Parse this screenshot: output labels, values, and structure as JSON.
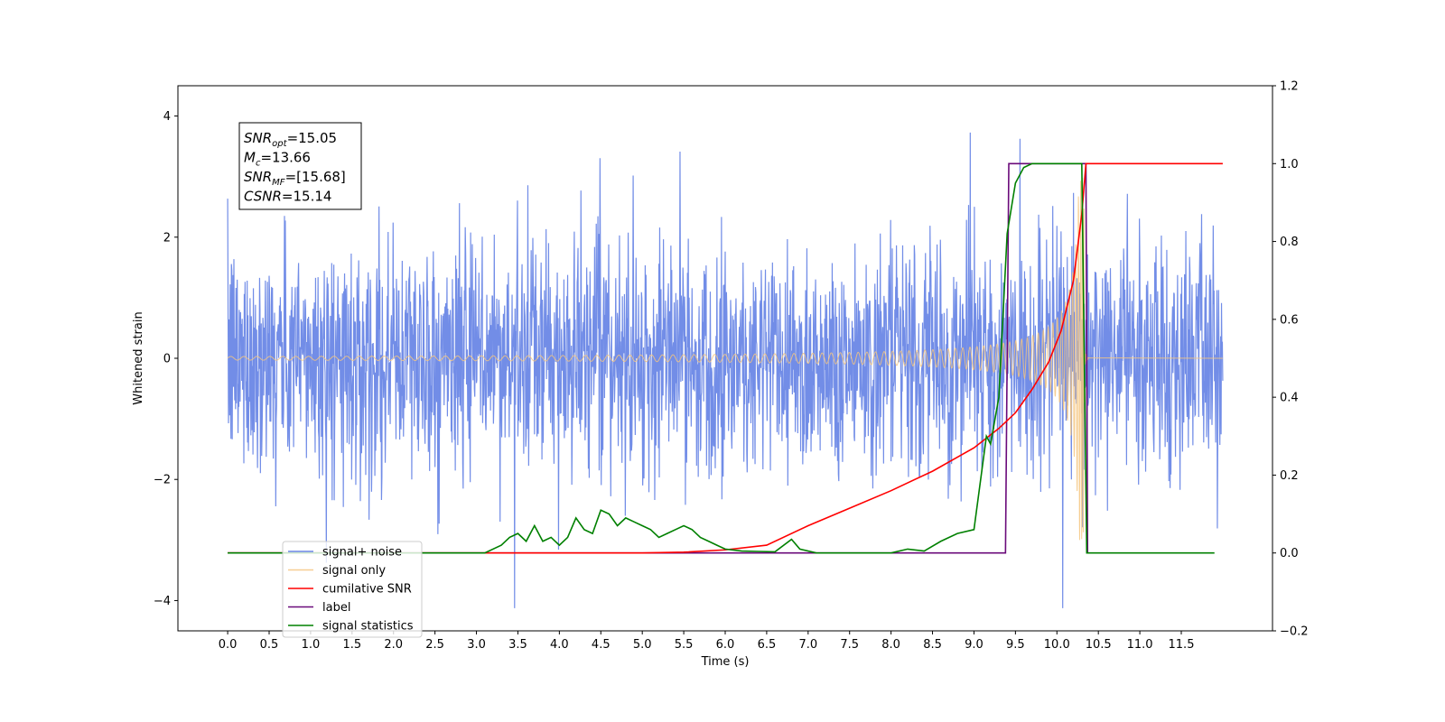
{
  "chart_data": {
    "type": "line",
    "xlabel": "Time (s)",
    "ylabel": "Whitened strain",
    "xlim": [
      -0.6,
      12.6
    ],
    "ylim": [
      -4.5,
      4.5
    ],
    "y2lim": [
      -0.2,
      1.2
    ],
    "x_ticks": [
      "0.0",
      "0.5",
      "1.0",
      "1.5",
      "2.0",
      "2.5",
      "3.0",
      "3.5",
      "4.0",
      "4.5",
      "5.0",
      "5.5",
      "6.0",
      "6.5",
      "7.0",
      "7.5",
      "8.0",
      "8.5",
      "9.0",
      "9.5",
      "10.0",
      "10.5",
      "11.0",
      "11.5"
    ],
    "y_ticks": [
      "4",
      "2",
      "0",
      "−2",
      "−4"
    ],
    "y2_ticks": [
      "1.2",
      "1.0",
      "0.8",
      "0.6",
      "0.4",
      "0.2",
      "0.0",
      "−0.2"
    ],
    "grid": false,
    "legend_position": "lower-left",
    "info_box": [
      {
        "base": "SNR",
        "sub": "opt",
        "value": "=15.05"
      },
      {
        "base": "M",
        "sub": "c",
        "value": "=13.66"
      },
      {
        "base": "SNR",
        "sub": "MF",
        "value": "=[15.68]"
      },
      {
        "base": "CSNR",
        "sub": "",
        "value": "=15.14"
      }
    ],
    "series": [
      {
        "name": "signal+ noise",
        "color": "#6a87e6",
        "axis": "left",
        "style": "noise",
        "x_range": [
          0.0,
          12.0
        ],
        "amplitude_envelope": 3.3
      },
      {
        "name": "signal only",
        "color": "#f5c67f",
        "axis": "left",
        "style": "chirp",
        "x_range": [
          0.0,
          10.38
        ],
        "merger_time": 10.33
      },
      {
        "name": "cumilative SNR",
        "color": "#ff0000",
        "axis": "right",
        "x": [
          0.0,
          5.0,
          5.5,
          6.0,
          6.5,
          7.0,
          7.5,
          8.0,
          8.5,
          9.0,
          9.3,
          9.5,
          9.7,
          9.9,
          10.05,
          10.2,
          10.3,
          10.35,
          12.0
        ],
        "values": [
          0.0,
          0.0,
          0.002,
          0.008,
          0.02,
          0.07,
          0.115,
          0.16,
          0.21,
          0.27,
          0.32,
          0.36,
          0.42,
          0.49,
          0.57,
          0.7,
          0.87,
          1.0,
          1.0
        ]
      },
      {
        "name": "label",
        "color": "#6a0a7a",
        "axis": "right",
        "x": [
          0.0,
          9.38,
          9.42,
          10.32,
          10.35,
          10.37
        ],
        "values": [
          0.0,
          0.0,
          1.0,
          1.0,
          1.0,
          0.0
        ]
      },
      {
        "name": "signal statistics",
        "color": "#008000",
        "axis": "right",
        "x": [
          0.0,
          3.1,
          3.3,
          3.4,
          3.5,
          3.6,
          3.7,
          3.75,
          3.8,
          3.9,
          4.0,
          4.1,
          4.2,
          4.3,
          4.4,
          4.5,
          4.6,
          4.7,
          4.8,
          4.9,
          5.0,
          5.1,
          5.2,
          5.3,
          5.4,
          5.5,
          5.6,
          5.7,
          5.8,
          5.9,
          6.0,
          6.2,
          6.4,
          6.6,
          6.8,
          6.9,
          7.1,
          8.0,
          8.2,
          8.4,
          8.6,
          8.8,
          9.0,
          9.15,
          9.2,
          9.3,
          9.4,
          9.5,
          9.6,
          9.7,
          9.9,
          10.1,
          10.25,
          10.3,
          10.33,
          10.36,
          11.9
        ],
        "values": [
          0.0,
          0.0,
          0.02,
          0.04,
          0.05,
          0.03,
          0.07,
          0.05,
          0.03,
          0.04,
          0.02,
          0.04,
          0.09,
          0.06,
          0.05,
          0.11,
          0.1,
          0.07,
          0.09,
          0.08,
          0.07,
          0.06,
          0.04,
          0.05,
          0.06,
          0.07,
          0.06,
          0.04,
          0.03,
          0.02,
          0.01,
          0.005,
          0.004,
          0.003,
          0.035,
          0.01,
          0.0,
          0.0,
          0.01,
          0.005,
          0.03,
          0.05,
          0.06,
          0.3,
          0.28,
          0.4,
          0.82,
          0.95,
          0.99,
          1.0,
          1.0,
          1.0,
          1.0,
          1.0,
          0.5,
          0.0,
          0.0
        ]
      }
    ]
  }
}
